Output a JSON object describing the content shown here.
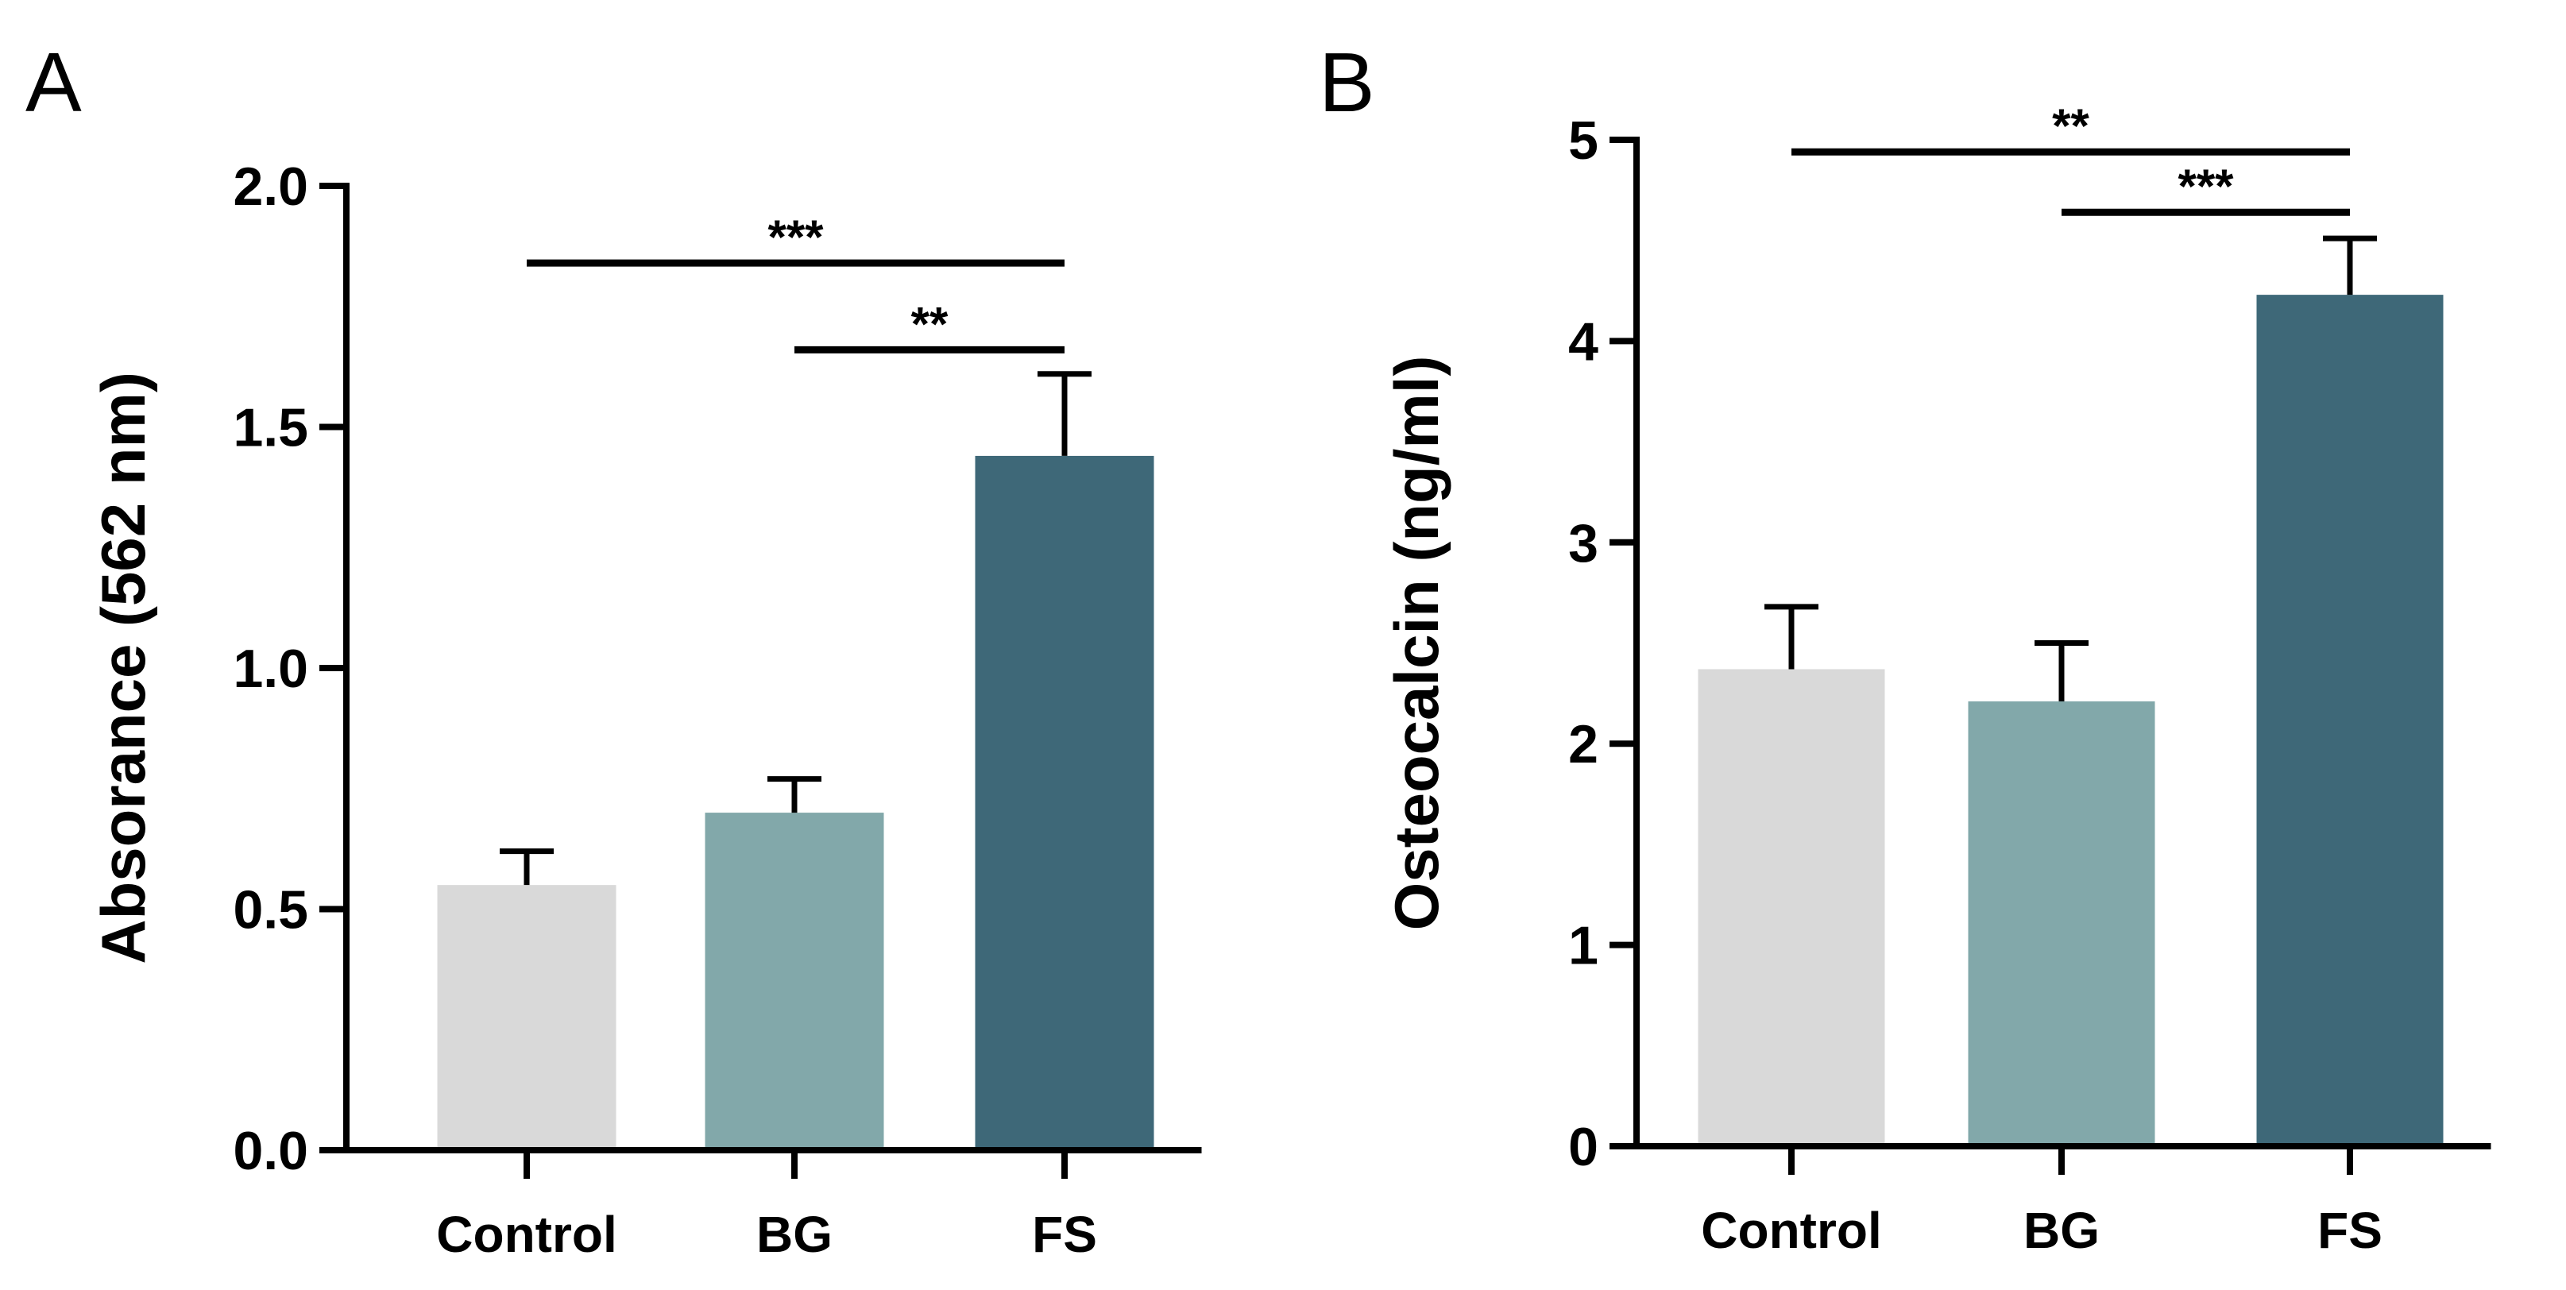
{
  "colors": {
    "control": "#d9d9d9",
    "bg": "#82a8aa",
    "fs": "#3e6878",
    "axis": "#000000"
  },
  "chart_data": [
    {
      "panel": "A",
      "type": "bar",
      "categories": [
        "Control",
        "BG",
        "FS"
      ],
      "values": [
        0.55,
        0.7,
        1.44
      ],
      "errors": [
        0.07,
        0.07,
        0.17
      ],
      "ylabel": "Absorance (562 nm)",
      "ylim": [
        0,
        2.0
      ],
      "yticks": [
        0.0,
        0.5,
        1.0,
        1.5,
        2.0
      ],
      "ytick_labels": [
        "0.0",
        "0.5",
        "1.0",
        "1.5",
        "2.0"
      ],
      "significance": [
        {
          "from": "Control",
          "to": "FS",
          "label": "***",
          "level": 1.84
        },
        {
          "from": "BG",
          "to": "FS",
          "label": "**",
          "level": 1.66
        }
      ]
    },
    {
      "panel": "B",
      "type": "bar",
      "categories": [
        "Control",
        "BG",
        "FS"
      ],
      "values": [
        2.37,
        2.21,
        4.23
      ],
      "errors": [
        0.31,
        0.29,
        0.28
      ],
      "ylabel": "Osteocalcin (ng/ml)",
      "ylim": [
        0,
        5
      ],
      "yticks": [
        0,
        1,
        2,
        3,
        4,
        5
      ],
      "ytick_labels": [
        "0",
        "1",
        "2",
        "3",
        "4",
        "5"
      ],
      "significance": [
        {
          "from": "Control",
          "to": "FS",
          "label": "**",
          "level": 4.94
        },
        {
          "from": "BG",
          "to": "FS",
          "label": "***",
          "level": 4.64
        }
      ]
    }
  ]
}
